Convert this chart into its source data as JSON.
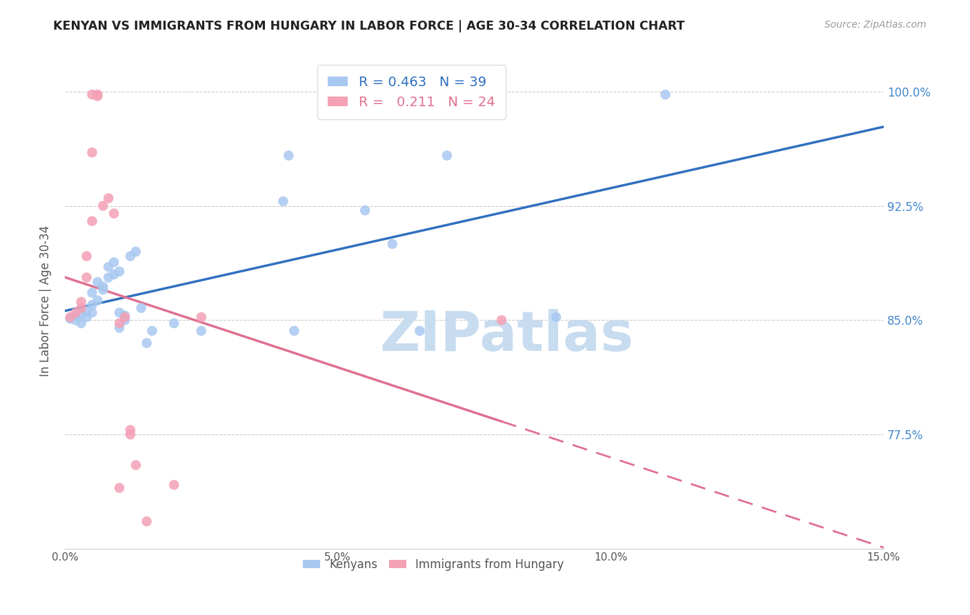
{
  "title": "KENYAN VS IMMIGRANTS FROM HUNGARY IN LABOR FORCE | AGE 30-34 CORRELATION CHART",
  "source": "Source: ZipAtlas.com",
  "ylabel": "In Labor Force | Age 30-34",
  "xlim": [
    0.0,
    0.15
  ],
  "ylim": [
    0.7,
    1.025
  ],
  "yticks": [
    0.775,
    0.85,
    0.925,
    1.0
  ],
  "ytick_labels": [
    "77.5%",
    "85.0%",
    "92.5%",
    "100.0%"
  ],
  "xticks": [
    0.0,
    0.05,
    0.1,
    0.15
  ],
  "xtick_labels": [
    "0.0%",
    "5.0%",
    "10.0%",
    "15.0%"
  ],
  "blue_R": 0.463,
  "blue_N": 39,
  "pink_R": 0.211,
  "pink_N": 24,
  "blue_color": "#A8C8F0",
  "pink_color": "#F4A0B5",
  "blue_line_color": "#3070C0",
  "pink_line_color": "#E07090",
  "blue_scatter": [
    [
      0.001,
      0.851
    ],
    [
      0.002,
      0.85
    ],
    [
      0.002,
      0.853
    ],
    [
      0.003,
      0.848
    ],
    [
      0.003,
      0.854
    ],
    [
      0.004,
      0.856
    ],
    [
      0.004,
      0.852
    ],
    [
      0.005,
      0.855
    ],
    [
      0.005,
      0.86
    ],
    [
      0.005,
      0.868
    ],
    [
      0.006,
      0.863
    ],
    [
      0.006,
      0.875
    ],
    [
      0.007,
      0.87
    ],
    [
      0.007,
      0.872
    ],
    [
      0.008,
      0.878
    ],
    [
      0.008,
      0.885
    ],
    [
      0.009,
      0.88
    ],
    [
      0.009,
      0.888
    ],
    [
      0.01,
      0.882
    ],
    [
      0.01,
      0.855
    ],
    [
      0.01,
      0.845
    ],
    [
      0.011,
      0.85
    ],
    [
      0.011,
      0.853
    ],
    [
      0.012,
      0.892
    ],
    [
      0.013,
      0.895
    ],
    [
      0.014,
      0.858
    ],
    [
      0.015,
      0.835
    ],
    [
      0.016,
      0.843
    ],
    [
      0.02,
      0.848
    ],
    [
      0.025,
      0.843
    ],
    [
      0.04,
      0.928
    ],
    [
      0.041,
      0.958
    ],
    [
      0.042,
      0.843
    ],
    [
      0.055,
      0.922
    ],
    [
      0.06,
      0.9
    ],
    [
      0.065,
      0.843
    ],
    [
      0.07,
      0.958
    ],
    [
      0.09,
      0.852
    ],
    [
      0.11,
      0.998
    ]
  ],
  "pink_scatter": [
    [
      0.001,
      0.852
    ],
    [
      0.002,
      0.855
    ],
    [
      0.003,
      0.858
    ],
    [
      0.003,
      0.862
    ],
    [
      0.004,
      0.878
    ],
    [
      0.004,
      0.892
    ],
    [
      0.005,
      0.915
    ],
    [
      0.005,
      0.96
    ],
    [
      0.005,
      0.998
    ],
    [
      0.006,
      0.998
    ],
    [
      0.006,
      0.997
    ],
    [
      0.007,
      0.925
    ],
    [
      0.008,
      0.93
    ],
    [
      0.009,
      0.92
    ],
    [
      0.01,
      0.848
    ],
    [
      0.011,
      0.852
    ],
    [
      0.012,
      0.775
    ],
    [
      0.012,
      0.778
    ],
    [
      0.013,
      0.755
    ],
    [
      0.015,
      0.718
    ],
    [
      0.02,
      0.742
    ],
    [
      0.025,
      0.852
    ],
    [
      0.08,
      0.85
    ],
    [
      0.01,
      0.74
    ]
  ],
  "watermark_text": "ZIPatlas",
  "watermark_color": "#C8DCF0",
  "background_color": "#FFFFFF",
  "grid_color": "#CCCCCC"
}
